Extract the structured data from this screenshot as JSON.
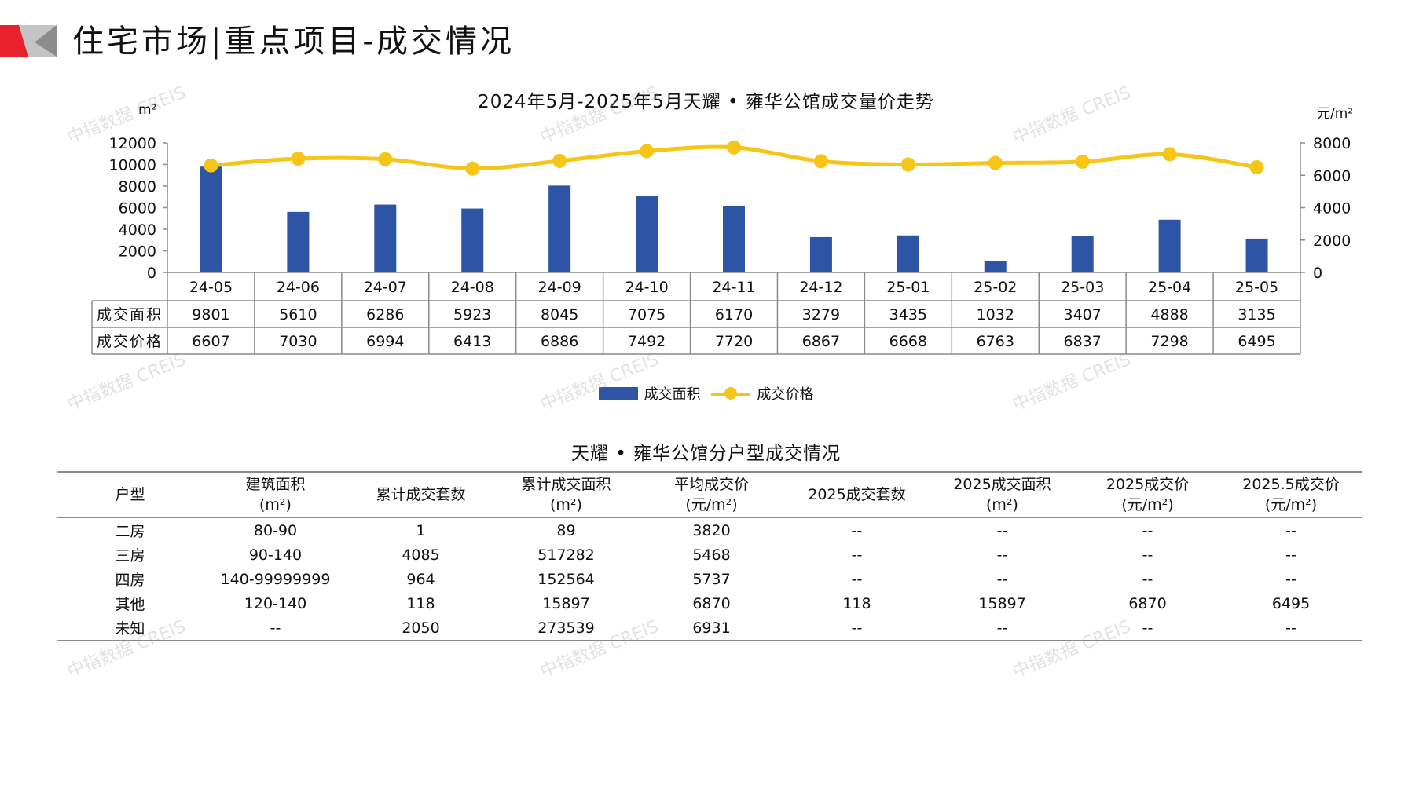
{
  "page_title": "住宅市场|重点项目-成交情况",
  "colors": {
    "bar": "#2e54a5",
    "line": "#f5c518",
    "logo_red": "#e8212a",
    "logo_grey": "#b9b9b9"
  },
  "watermark": "中指数据 CREIS",
  "chart_data": {
    "type": "bar+line",
    "title": "2024年5月-2025年5月天耀 • 雍华公馆成交量价走势",
    "left_unit": "m²",
    "right_unit": "元/m²",
    "categories": [
      "24-05",
      "24-06",
      "24-07",
      "24-08",
      "24-09",
      "24-10",
      "24-11",
      "24-12",
      "25-01",
      "25-02",
      "25-03",
      "25-04",
      "25-05"
    ],
    "series": [
      {
        "name": "成交面积",
        "type": "bar",
        "axis": "left",
        "values": [
          9801,
          5610,
          6286,
          5923,
          8045,
          7075,
          6170,
          3279,
          3435,
          1032,
          3407,
          4888,
          3135
        ]
      },
      {
        "name": "成交价格",
        "type": "line",
        "axis": "right",
        "values": [
          6607,
          7030,
          6994,
          6413,
          6886,
          7492,
          7720,
          6867,
          6668,
          6763,
          6837,
          7298,
          6495
        ]
      }
    ],
    "y_left": {
      "min": 0,
      "max": 12000,
      "ticks": [
        0,
        2000,
        4000,
        6000,
        8000,
        10000,
        12000
      ]
    },
    "y_right": {
      "min": 0,
      "max": 8000,
      "ticks": [
        0,
        2000,
        4000,
        6000,
        8000
      ]
    },
    "legend": {
      "position": "bottom"
    },
    "data_table": true
  },
  "unit_table": {
    "title": "天耀 • 雍华公馆分户型成交情况",
    "headers": [
      {
        "line1": "户型",
        "line2": ""
      },
      {
        "line1": "建筑面积",
        "line2": "(m²)"
      },
      {
        "line1": "累计成交套数",
        "line2": ""
      },
      {
        "line1": "累计成交面积",
        "line2": "(m²)"
      },
      {
        "line1": "平均成交价",
        "line2": "(元/m²)"
      },
      {
        "line1": "2025成交套数",
        "line2": ""
      },
      {
        "line1": "2025成交面积",
        "line2": "(m²)"
      },
      {
        "line1": "2025成交价",
        "line2": "(元/m²)"
      },
      {
        "line1": "2025.5成交价",
        "line2": "(元/m²)"
      }
    ],
    "rows": [
      [
        "二房",
        "80-90",
        "1",
        "89",
        "3820",
        "--",
        "--",
        "--",
        "--"
      ],
      [
        "三房",
        "90-140",
        "4085",
        "517282",
        "5468",
        "--",
        "--",
        "--",
        "--"
      ],
      [
        "四房",
        "140-99999999",
        "964",
        "152564",
        "5737",
        "--",
        "--",
        "--",
        "--"
      ],
      [
        "其他",
        "120-140",
        "118",
        "15897",
        "6870",
        "118",
        "15897",
        "6870",
        "6495"
      ],
      [
        "未知",
        "--",
        "2050",
        "273539",
        "6931",
        "--",
        "--",
        "--",
        "--"
      ]
    ]
  }
}
